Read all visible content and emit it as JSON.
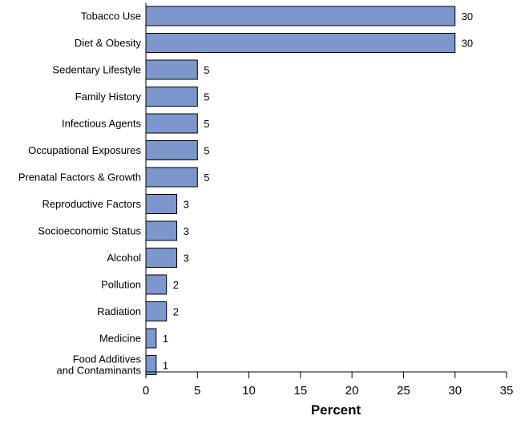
{
  "chart_data": {
    "type": "bar",
    "orientation": "horizontal",
    "categories": [
      "Tobacco Use",
      "Diet & Obesity",
      "Sedentary Lifestyle",
      "Family History",
      "Infectious Agents",
      "Occupational Exposures",
      "Prenatal Factors & Growth",
      "Reproductive Factors",
      "Socioeconomic Status",
      "Alcohol",
      "Pollution",
      "Radiation",
      "Medicine",
      [
        "Food Additives",
        "and Contaminants"
      ]
    ],
    "values": [
      30,
      30,
      5,
      5,
      5,
      5,
      5,
      3,
      3,
      3,
      2,
      2,
      1,
      1
    ],
    "xlabel": "Percent",
    "ylabel": "",
    "title": "",
    "xlim": [
      0,
      35
    ],
    "xticks": [
      0,
      5,
      10,
      15,
      20,
      25,
      30,
      35
    ],
    "grid": false,
    "bar_color": "#7b97cc"
  }
}
